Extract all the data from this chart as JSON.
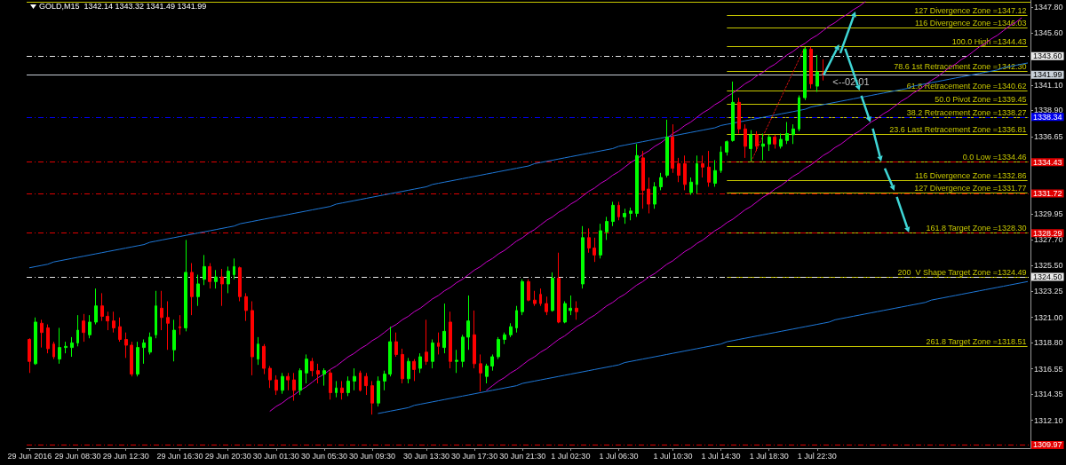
{
  "chart_data": {
    "type": "candlestick",
    "title": "GOLD,M15  1342.14 1343.32 1341.49 1341.99",
    "categories": [
      "29 Jun 2016",
      null,
      null,
      null,
      null,
      null,
      null,
      null,
      "29 Jun 08:30",
      null,
      null,
      null,
      null,
      null,
      null,
      null,
      "29 Jun 12:30",
      null,
      null,
      null,
      null,
      null,
      null,
      null,
      null,
      "29 Jun 16:30",
      null,
      null,
      null,
      null,
      null,
      null,
      null,
      "29 Jun 20:30",
      null,
      null,
      null,
      null,
      null,
      null,
      null,
      "30 Jun 01:30",
      null,
      null,
      null,
      null,
      null,
      null,
      null,
      "30 Jun 05:30",
      null,
      null,
      null,
      null,
      null,
      null,
      null,
      "30 Jun 09:30",
      null,
      null,
      null,
      null,
      null,
      null,
      null,
      null,
      "30 Jun 13:30",
      null,
      null,
      null,
      null,
      null,
      null,
      null,
      "30 Jun 17:30",
      null,
      null,
      null,
      null,
      null,
      null,
      null,
      "30 Jun 21:30",
      null,
      null,
      null,
      null,
      null,
      null,
      null,
      "1 Jul 02:30",
      null,
      null,
      null,
      null,
      null,
      null,
      null,
      "1 Jul 06:30",
      null,
      null,
      null,
      null,
      null,
      null,
      null,
      null,
      "1 Jul 10:30",
      null,
      null,
      null,
      null,
      null,
      null,
      null,
      "1 Jul 14:30",
      null,
      null,
      null,
      null,
      null,
      null,
      null,
      "1 Jul 18:30",
      null,
      null,
      null,
      null,
      null,
      null,
      null,
      "1 Jul 22:30",
      null,
      null,
      null,
      null,
      null,
      null,
      null,
      null,
      null,
      null,
      null,
      null,
      null,
      null,
      null,
      null,
      null,
      null,
      null,
      null,
      null,
      null,
      null,
      null,
      null,
      null,
      null,
      null,
      null,
      null,
      null,
      null,
      null,
      null,
      null
    ],
    "ohlc": [
      [
        1319.1,
        1319.2,
        1316.2,
        1317.2
      ],
      [
        1317.0,
        1321.0,
        1316.9,
        1320.6
      ],
      [
        1320.5,
        1320.8,
        1318.4,
        1319.7
      ],
      [
        1320.1,
        1320.4,
        1317.9,
        1318.3
      ],
      [
        1318.7,
        1318.9,
        1317.4,
        1317.6
      ],
      [
        1317.4,
        1320.1,
        1317.0,
        1318.4
      ],
      [
        1318.4,
        1318.9,
        1317.9,
        1318.5
      ],
      [
        1318.4,
        1319.3,
        1317.6,
        1318.8
      ],
      [
        1318.8,
        1321.2,
        1318.5,
        1319.9
      ],
      [
        1320.7,
        1321.3,
        1318.9,
        1319.7
      ],
      [
        1319.5,
        1321.2,
        1319.2,
        1320.6
      ],
      [
        1320.6,
        1323.5,
        1320.4,
        1322.0
      ],
      [
        1322.0,
        1323.1,
        1320.7,
        1321.1
      ],
      [
        1321.1,
        1321.5,
        1319.9,
        1320.7
      ],
      [
        1320.7,
        1321.5,
        1319.7,
        1320.1
      ],
      [
        1320.2,
        1321.0,
        1318.9,
        1319.1
      ],
      [
        1319.1,
        1319.7,
        1317.5,
        1318.6
      ],
      [
        1318.6,
        1318.9,
        1315.9,
        1316.1
      ],
      [
        1316.1,
        1318.9,
        1315.9,
        1318.4
      ],
      [
        1318.4,
        1319.1,
        1317.0,
        1318.8
      ],
      [
        1318.0,
        1319.7,
        1317.8,
        1319.3
      ],
      [
        1319.5,
        1323.3,
        1319.2,
        1322.0
      ],
      [
        1321.8,
        1323.3,
        1319.9,
        1321.0
      ],
      [
        1321.0,
        1322.4,
        1318.2,
        1320.5
      ],
      [
        1318.2,
        1320.8,
        1317.2,
        1319.9
      ],
      [
        1320.2,
        1321.2,
        1319.5,
        1320.1
      ],
      [
        1320.1,
        1327.7,
        1319.8,
        1324.9
      ],
      [
        1324.9,
        1325.7,
        1321.2,
        1322.8
      ],
      [
        1322.8,
        1324.7,
        1322.0,
        1323.9
      ],
      [
        1324.3,
        1326.4,
        1323.8,
        1325.4
      ],
      [
        1325.4,
        1325.7,
        1323.5,
        1324.1
      ],
      [
        1324.1,
        1325.1,
        1323.5,
        1324.5
      ],
      [
        1324.5,
        1325.2,
        1322.0,
        1323.9
      ],
      [
        1323.9,
        1325.4,
        1323.1,
        1325.0
      ],
      [
        1324.7,
        1326.1,
        1324.3,
        1325.4
      ],
      [
        1325.3,
        1325.4,
        1322.4,
        1322.8
      ],
      [
        1322.8,
        1323.1,
        1320.7,
        1321.6
      ],
      [
        1321.6,
        1322.4,
        1316.0,
        1317.6
      ],
      [
        1317.4,
        1319.3,
        1316.9,
        1318.7
      ],
      [
        1318.5,
        1318.7,
        1316.1,
        1316.6
      ],
      [
        1316.6,
        1316.8,
        1314.9,
        1315.6
      ],
      [
        1315.6,
        1316.0,
        1314.3,
        1314.7
      ],
      [
        1314.7,
        1316.2,
        1314.4,
        1315.9
      ],
      [
        1315.9,
        1316.2,
        1314.7,
        1315.6
      ],
      [
        1315.6,
        1316.2,
        1313.8,
        1314.7
      ],
      [
        1314.7,
        1316.6,
        1314.3,
        1316.4
      ],
      [
        1316.2,
        1317.8,
        1315.3,
        1317.4
      ],
      [
        1317.2,
        1317.5,
        1315.9,
        1316.4
      ],
      [
        1316.4,
        1317.0,
        1315.3,
        1316.1
      ],
      [
        1316.1,
        1316.6,
        1315.1,
        1316.4
      ],
      [
        1316.2,
        1316.5,
        1313.9,
        1314.5
      ],
      [
        1314.5,
        1315.5,
        1314.1,
        1314.9
      ],
      [
        1314.9,
        1315.5,
        1313.9,
        1314.5
      ],
      [
        1314.5,
        1315.9,
        1314.2,
        1315.5
      ],
      [
        1315.5,
        1316.6,
        1314.7,
        1315.9
      ],
      [
        1316.2,
        1316.4,
        1314.6,
        1314.7
      ],
      [
        1315.9,
        1316.2,
        1314.3,
        1315.1
      ],
      [
        1315.1,
        1315.5,
        1312.6,
        1313.6
      ],
      [
        1313.6,
        1315.9,
        1313.3,
        1315.5
      ],
      [
        1315.5,
        1316.4,
        1314.7,
        1316.1
      ],
      [
        1316.1,
        1320.2,
        1315.9,
        1318.9
      ],
      [
        1318.9,
        1319.7,
        1317.6,
        1317.8
      ],
      [
        1317.8,
        1318.3,
        1315.3,
        1315.7
      ],
      [
        1315.7,
        1317.5,
        1315.3,
        1317.2
      ],
      [
        1317.2,
        1317.4,
        1315.5,
        1316.5
      ],
      [
        1316.6,
        1317.9,
        1316.2,
        1317.6
      ],
      [
        1318.0,
        1320.8,
        1316.9,
        1317.2
      ],
      [
        1317.2,
        1319.1,
        1316.6,
        1318.8
      ],
      [
        1318.8,
        1319.7,
        1317.8,
        1318.5
      ],
      [
        1318.4,
        1322.2,
        1317.9,
        1319.8
      ],
      [
        1320.6,
        1321.5,
        1316.6,
        1317.2
      ],
      [
        1317.2,
        1318.2,
        1316.2,
        1317.3
      ],
      [
        1317.2,
        1319.5,
        1316.7,
        1319.3
      ],
      [
        1319.3,
        1322.9,
        1318.2,
        1320.7
      ],
      [
        1319.5,
        1321.6,
        1316.6,
        1317.0
      ],
      [
        1317.0,
        1317.8,
        1314.6,
        1316.2
      ],
      [
        1315.9,
        1317.0,
        1315.3,
        1316.8
      ],
      [
        1316.8,
        1317.8,
        1316.4,
        1317.6
      ],
      [
        1317.6,
        1319.3,
        1317.4,
        1319.1
      ],
      [
        1319.1,
        1319.7,
        1318.7,
        1319.5
      ],
      [
        1319.5,
        1320.5,
        1319.3,
        1320.2
      ],
      [
        1320.1,
        1322.0,
        1319.7,
        1321.6
      ],
      [
        1321.5,
        1324.3,
        1321.2,
        1324.1
      ],
      [
        1324.1,
        1324.3,
        1322.4,
        1322.5
      ],
      [
        1322.5,
        1323.3,
        1322.0,
        1322.2
      ],
      [
        1323.0,
        1323.5,
        1322.0,
        1322.2
      ],
      [
        1322.2,
        1322.8,
        1321.2,
        1321.5
      ],
      [
        1321.6,
        1324.9,
        1321.5,
        1324.4
      ],
      [
        1324.4,
        1326.6,
        1320.5,
        1320.6
      ],
      [
        1320.6,
        1322.4,
        1320.5,
        1322.2
      ],
      [
        1321.6,
        1322.9,
        1321.2,
        1321.8
      ],
      [
        1321.8,
        1322.4,
        1320.8,
        1321.5
      ],
      [
        1323.9,
        1328.9,
        1323.5,
        1327.9
      ],
      [
        1327.9,
        1328.7,
        1326.6,
        1327.0
      ],
      [
        1327.0,
        1327.9,
        1325.8,
        1326.4
      ],
      [
        1326.4,
        1329.1,
        1326.1,
        1328.5
      ],
      [
        1328.4,
        1329.7,
        1327.7,
        1329.3
      ],
      [
        1329.3,
        1331.0,
        1328.9,
        1330.7
      ],
      [
        1330.7,
        1331.0,
        1329.4,
        1329.7
      ],
      [
        1329.7,
        1330.4,
        1329.1,
        1330.0
      ],
      [
        1330.0,
        1330.5,
        1329.4,
        1330.2
      ],
      [
        1330.0,
        1336.0,
        1329.7,
        1335.0
      ],
      [
        1334.8,
        1335.4,
        1330.4,
        1332.0
      ],
      [
        1332.1,
        1333.1,
        1330.0,
        1330.8
      ],
      [
        1330.8,
        1332.7,
        1330.4,
        1332.3
      ],
      [
        1332.3,
        1333.5,
        1332.0,
        1333.1
      ],
      [
        1333.3,
        1338.1,
        1333.1,
        1336.6
      ],
      [
        1336.6,
        1337.7,
        1333.5,
        1333.9
      ],
      [
        1334.3,
        1334.8,
        1332.7,
        1333.3
      ],
      [
        1334.3,
        1335.0,
        1332.0,
        1332.5
      ],
      [
        1331.8,
        1333.1,
        1331.6,
        1332.7
      ],
      [
        1332.5,
        1335.0,
        1331.7,
        1334.3
      ],
      [
        1334.3,
        1335.0,
        1333.1,
        1334.0
      ],
      [
        1334.0,
        1335.4,
        1332.3,
        1332.7
      ],
      [
        1332.6,
        1334.6,
        1332.3,
        1333.7
      ],
      [
        1333.7,
        1335.8,
        1333.5,
        1335.3
      ],
      [
        1335.3,
        1336.3,
        1335.0,
        1336.2
      ],
      [
        1336.3,
        1341.4,
        1336.2,
        1339.6
      ],
      [
        1339.6,
        1340.0,
        1336.9,
        1337.3
      ],
      [
        1337.3,
        1337.7,
        1334.8,
        1335.8
      ],
      [
        1335.6,
        1337.2,
        1334.5,
        1336.8
      ],
      [
        1336.8,
        1337.1,
        1335.4,
        1335.8
      ],
      [
        1335.8,
        1336.9,
        1334.6,
        1336.0
      ],
      [
        1336.0,
        1336.8,
        1335.4,
        1336.6
      ],
      [
        1336.6,
        1336.8,
        1335.6,
        1336.0
      ],
      [
        1335.8,
        1336.9,
        1335.6,
        1336.4
      ],
      [
        1336.3,
        1337.9,
        1336.0,
        1336.9
      ],
      [
        1336.8,
        1337.7,
        1336.0,
        1337.3
      ],
      [
        1337.3,
        1340.2,
        1337.1,
        1340.0
      ],
      [
        1340.0,
        1344.4,
        1339.8,
        1344.2
      ],
      [
        1344.2,
        1344.4,
        1340.8,
        1341.2
      ],
      [
        1341.0,
        1343.7,
        1340.5,
        1342.2
      ],
      [
        1342.14,
        1343.32,
        1341.49,
        1341.99
      ],
      null,
      null,
      null,
      null,
      null,
      null,
      null,
      null,
      null,
      null,
      null,
      null,
      null,
      null,
      null,
      null,
      null,
      null,
      null,
      null,
      null,
      null,
      null,
      null,
      null,
      null,
      null,
      null,
      null,
      null,
      null,
      null,
      null,
      null
    ],
    "colors": [
      "#ff0000",
      "#00ff00",
      "#ff0000",
      "#ff0000",
      "#ff0000",
      "#00ff00",
      "#00ff00",
      "#00ff00",
      "#00ff00",
      "#ff0000",
      "#00ff00",
      "#00ff00",
      "#ff0000",
      "#ff0000",
      "#ff0000",
      "#ff0000",
      "#ff0000",
      "#ff0000",
      "#00ff00",
      "#00ff00",
      "#00ff00",
      "#00ff00",
      "#ff0000",
      "#ff0000",
      "#00ff00",
      "#ff0000",
      "#00ff00",
      "#ff0000",
      "#00ff00",
      "#00ff00",
      "#ff0000",
      "#00ff00",
      "#ff0000",
      "#00ff00",
      "#00ff00",
      "#ff0000",
      "#ff0000",
      "#ff0000",
      "#00ff00",
      "#ff0000",
      "#ff0000",
      "#ff0000",
      "#00ff00",
      "#ff0000",
      "#ff0000",
      "#00ff00",
      "#00ff00",
      "#ff0000",
      "#ff0000",
      "#00ff00",
      "#ff0000",
      "#00ff00",
      "#ff0000",
      "#00ff00",
      "#00ff00",
      "#ff0000",
      "#ff0000",
      "#ff0000",
      "#00ff00",
      "#00ff00",
      "#00ff00",
      "#ff0000",
      "#ff0000",
      "#00ff00",
      "#ff0000",
      "#00ff00",
      "#ff0000",
      "#00ff00",
      "#ff0000",
      "#00ff00",
      "#ff0000",
      "#00ff00",
      "#00ff00",
      "#00ff00",
      "#ff0000",
      "#ff0000",
      "#00ff00",
      "#00ff00",
      "#00ff00",
      "#00ff00",
      "#00ff00",
      "#00ff00",
      "#00ff00",
      "#ff0000",
      "#ff0000",
      "#ff0000",
      "#ff0000",
      "#00ff00",
      "#ff0000",
      "#00ff00",
      "#00ff00",
      "#ff0000",
      "#00ff00",
      "#ff0000",
      "#ff0000",
      "#00ff00",
      "#00ff00",
      "#00ff00",
      "#ff0000",
      "#00ff00",
      "#00ff00",
      "#00ff00",
      "#ff0000",
      "#ff0000",
      "#00ff00",
      "#00ff00",
      "#00ff00",
      "#ff0000",
      "#ff0000",
      "#ff0000",
      "#00ff00",
      "#00ff00",
      "#ff0000",
      "#ff0000",
      "#00ff00",
      "#00ff00",
      "#00ff00",
      "#00ff00",
      "#ff0000",
      "#ff0000",
      "#00ff00",
      "#ff0000",
      "#00ff00",
      "#00ff00",
      "#ff0000",
      "#00ff00",
      "#00ff00",
      "#00ff00",
      "#00ff00",
      "#00ff00",
      "#ff0000",
      "#00ff00",
      "#ff0000",
      null,
      null,
      null,
      null,
      null,
      null,
      null,
      null,
      null,
      null,
      null,
      null,
      null,
      null,
      null,
      null,
      null,
      null,
      null,
      null,
      null,
      null,
      null,
      null,
      null,
      null,
      null,
      null,
      null,
      null,
      null,
      null,
      null,
      null
    ],
    "series": [
      {
        "type": "line",
        "color": "#1e78d8",
        "line_style": "solid",
        "values": [
          1325.3,
          1325.4,
          1325.5,
          1325.6,
          1325.8,
          1325.9,
          1326.0,
          1326.1,
          1326.2,
          1326.3,
          1326.4,
          1326.5,
          1326.6,
          1326.7,
          1326.8,
          1326.9,
          1327.0,
          1327.1,
          1327.2,
          1327.3,
          1327.5,
          1327.6,
          1327.7,
          1327.8,
          1327.9,
          1328.0,
          1328.1,
          1328.2,
          1328.3,
          1328.4,
          1328.5,
          1328.6,
          1328.7,
          1328.8,
          1328.9,
          1329.1,
          1329.2,
          1329.3,
          1329.4,
          1329.5,
          1329.6,
          1329.7,
          1329.8,
          1329.9,
          1330.0,
          1330.1,
          1330.2,
          1330.3,
          1330.4,
          1330.5,
          1330.6,
          1330.8,
          1330.9,
          1331.0,
          1331.1,
          1331.2,
          1331.3,
          1331.4,
          1331.5,
          1331.6,
          1331.7,
          1331.8,
          1331.9,
          1332.0,
          1332.1,
          1332.2,
          1332.3,
          1332.5,
          1332.6,
          1332.7,
          1332.8,
          1332.9,
          1333.0,
          1333.1,
          1333.2,
          1333.3,
          1333.4,
          1333.5,
          1333.6,
          1333.7,
          1333.8,
          1333.9,
          1334.0,
          1334.1,
          1334.3,
          1334.4,
          1334.5,
          1334.6,
          1334.7,
          1334.8,
          1334.9,
          1335.0,
          1335.1,
          1335.2,
          1335.3,
          1335.4,
          1335.5,
          1335.6,
          1335.8,
          1335.9,
          1336.0,
          1336.1,
          1336.2,
          1336.3,
          1336.4,
          1336.5,
          1336.6,
          1336.7,
          1336.8,
          1336.9,
          1337.0,
          1337.1,
          1337.2,
          1337.3,
          1337.4,
          1337.6,
          1337.7,
          1337.8,
          1337.9,
          1338.0,
          1338.1,
          1338.2,
          1338.3,
          1338.4,
          1338.5,
          1338.6,
          1338.7,
          1338.8,
          1338.9,
          1339.0,
          1339.2,
          1339.3,
          1339.4,
          1339.5,
          1339.6,
          1339.7,
          1339.8,
          1339.9,
          1340.0,
          1340.1,
          1340.2,
          1340.3,
          1340.4,
          1340.5,
          1340.6,
          1340.7,
          1340.8,
          1341.0,
          1341.1,
          1341.2,
          1341.3,
          1341.4,
          1341.5,
          1341.6,
          1341.7,
          1341.8,
          1341.9,
          1342.0,
          1342.1,
          1342.2,
          1342.3,
          1342.4,
          1342.6,
          1342.7,
          1342.8,
          1342.9,
          1343.0
        ]
      },
      {
        "type": "line",
        "color": "#1e78d8",
        "line_style": "solid",
        "values": [
          null,
          null,
          null,
          null,
          null,
          null,
          null,
          null,
          null,
          null,
          null,
          null,
          null,
          null,
          null,
          null,
          null,
          null,
          null,
          null,
          null,
          null,
          null,
          null,
          null,
          null,
          null,
          null,
          null,
          null,
          null,
          null,
          null,
          null,
          null,
          null,
          null,
          null,
          null,
          null,
          null,
          null,
          null,
          null,
          null,
          null,
          null,
          null,
          null,
          null,
          null,
          null,
          null,
          null,
          null,
          null,
          null,
          null,
          1312.7,
          1312.8,
          1312.9,
          1313.0,
          1313.1,
          1313.2,
          1313.4,
          1313.5,
          1313.6,
          1313.7,
          1313.8,
          1313.9,
          1314.0,
          1314.1,
          1314.2,
          1314.3,
          1314.4,
          1314.5,
          1314.6,
          1314.7,
          1314.8,
          1314.9,
          1315.0,
          1315.1,
          1315.3,
          1315.4,
          1315.5,
          1315.6,
          1315.7,
          1315.8,
          1315.9,
          1316.0,
          1316.1,
          1316.2,
          1316.3,
          1316.4,
          1316.5,
          1316.6,
          1316.7,
          1316.8,
          1316.9,
          1317.1,
          1317.2,
          1317.3,
          1317.4,
          1317.5,
          1317.6,
          1317.7,
          1317.8,
          1317.9,
          1318.0,
          1318.1,
          1318.2,
          1318.3,
          1318.4,
          1318.5,
          1318.6,
          1318.7,
          1318.9,
          1319.0,
          1319.1,
          1319.2,
          1319.3,
          1319.4,
          1319.5,
          1319.6,
          1319.7,
          1319.8,
          1319.9,
          1320.0,
          1320.1,
          1320.2,
          1320.3,
          1320.4,
          1320.5,
          1320.6,
          1320.8,
          1320.9,
          1321.0,
          1321.1,
          1321.2,
          1321.3,
          1321.4,
          1321.5,
          1321.6,
          1321.7,
          1321.8,
          1321.9,
          1322.0,
          1322.1,
          1322.2,
          1322.3,
          1322.5,
          1322.6,
          1322.7,
          1322.8,
          1322.9,
          1323.0,
          1323.1,
          1323.2,
          1323.3,
          1323.4,
          1323.5,
          1323.6,
          1323.7,
          1323.8,
          1323.9,
          1324.0,
          1324.1
        ]
      },
      {
        "type": "line",
        "color": "#d000d0",
        "line_style": "solid",
        "values": [
          null,
          null,
          null,
          null,
          null,
          null,
          null,
          null,
          null,
          null,
          null,
          null,
          null,
          null,
          null,
          null,
          null,
          null,
          null,
          null,
          null,
          null,
          null,
          null,
          null,
          null,
          null,
          null,
          null,
          null,
          null,
          null,
          null,
          null,
          null,
          null,
          null,
          null,
          null,
          null,
          1312.9,
          1313.3,
          1313.6,
          1314.0,
          1314.3,
          1314.7,
          1315.0,
          1315.4,
          1315.8,
          1316.1,
          1316.5,
          1316.8,
          1317.2,
          1317.6,
          1317.9,
          1318.3,
          1318.6,
          1319.0,
          1319.3,
          1319.7,
          1320.1,
          1320.4,
          1320.8,
          1321.1,
          1321.5,
          1321.8,
          1322.2,
          1322.6,
          1322.9,
          1323.3,
          1323.6,
          1324.0,
          1324.3,
          1324.7,
          1325.1,
          1325.4,
          1325.8,
          1326.1,
          1326.5,
          1326.8,
          1327.2,
          1327.6,
          1327.9,
          1328.3,
          1328.6,
          1329.0,
          1329.4,
          1329.7,
          1330.1,
          1330.4,
          1330.8,
          1331.1,
          1331.5,
          1331.9,
          1332.2,
          1332.6,
          1332.9,
          1333.3,
          1333.6,
          1334.0,
          1334.4,
          1334.7,
          1335.1,
          1335.4,
          1335.8,
          1336.1,
          1336.5,
          1336.9,
          1337.2,
          1337.6,
          1337.9,
          1338.3,
          1338.7,
          1339.0,
          1339.4,
          1339.7,
          1340.1,
          1340.4,
          1340.8,
          1341.2,
          1341.5,
          1341.9,
          1342.2,
          1342.6,
          1342.9,
          1343.3,
          1343.7,
          1344.0,
          1344.4,
          1344.7,
          1345.1,
          1345.4,
          1345.8,
          1346.2,
          1346.5,
          1346.9,
          1347.2,
          1347.6,
          1347.9,
          1348.3,
          null,
          null,
          null,
          null,
          null,
          null,
          null,
          null,
          null,
          null,
          null,
          null,
          null,
          null,
          null,
          null,
          null,
          null,
          null,
          null,
          null,
          null,
          null,
          null,
          null,
          null,
          null
        ]
      },
      {
        "type": "line",
        "color": "#d000d0",
        "line_style": "solid",
        "values": [
          null,
          null,
          null,
          null,
          null,
          null,
          null,
          null,
          null,
          null,
          null,
          null,
          null,
          null,
          null,
          null,
          null,
          null,
          null,
          null,
          null,
          null,
          null,
          null,
          null,
          null,
          null,
          null,
          null,
          null,
          null,
          null,
          null,
          null,
          null,
          null,
          null,
          null,
          null,
          null,
          null,
          null,
          null,
          null,
          null,
          null,
          null,
          null,
          null,
          null,
          null,
          null,
          null,
          null,
          null,
          null,
          null,
          null,
          null,
          null,
          null,
          null,
          null,
          null,
          null,
          null,
          null,
          null,
          null,
          null,
          null,
          null,
          null,
          null,
          null,
          null,
          1314.7,
          1315.1,
          1315.5,
          1315.8,
          1316.2,
          1316.5,
          1316.9,
          1317.3,
          1317.6,
          1318.0,
          1318.3,
          1318.7,
          1319.1,
          1319.4,
          1319.8,
          1320.2,
          1320.5,
          1320.9,
          1321.2,
          1321.6,
          1322.0,
          1322.3,
          1322.7,
          1323.0,
          1323.4,
          1323.8,
          1324.1,
          1324.5,
          1324.8,
          1325.2,
          1325.6,
          1325.9,
          1326.3,
          1326.7,
          1327.0,
          1327.4,
          1327.7,
          1328.1,
          1328.5,
          1328.8,
          1329.2,
          1329.5,
          1329.9,
          1330.3,
          1330.6,
          1331.0,
          1331.4,
          1331.7,
          1332.1,
          1332.4,
          1332.8,
          1333.2,
          1333.5,
          1333.9,
          1334.2,
          1334.6,
          1335.0,
          1335.3,
          1335.7,
          1336.0,
          1336.4,
          1336.8,
          1337.1,
          1337.5,
          1337.9,
          1338.2,
          1338.6,
          1338.9,
          1339.3,
          1339.7,
          1340.0,
          1340.4,
          1340.7,
          1341.1,
          1341.5,
          1341.8,
          1342.2,
          1342.6,
          1342.9,
          1343.3,
          1343.6,
          1344.0,
          1344.4,
          1344.7,
          1345.1,
          1345.4,
          1345.8,
          1346.2,
          1346.5,
          1346.9,
          null
        ]
      },
      {
        "type": "line",
        "color": "#d01010",
        "line_style": "dotted",
        "values": [
          null,
          null,
          null,
          null,
          null,
          null,
          null,
          null,
          null,
          null,
          null,
          null,
          null,
          null,
          null,
          null,
          null,
          null,
          null,
          null,
          null,
          null,
          null,
          null,
          null,
          null,
          null,
          null,
          null,
          null,
          null,
          null,
          null,
          null,
          null,
          null,
          null,
          null,
          null,
          null,
          null,
          null,
          null,
          null,
          null,
          null,
          null,
          null,
          null,
          null,
          null,
          null,
          null,
          null,
          null,
          null,
          null,
          null,
          null,
          null,
          null,
          null,
          null,
          null,
          null,
          null,
          null,
          null,
          null,
          null,
          null,
          null,
          null,
          null,
          null,
          null,
          null,
          null,
          null,
          null,
          null,
          null,
          null,
          null,
          null,
          null,
          null,
          null,
          null,
          null,
          null,
          null,
          null,
          null,
          null,
          null,
          null,
          null,
          null,
          null,
          null,
          null,
          null,
          null,
          null,
          null,
          null,
          null,
          null,
          null,
          null,
          null,
          null,
          null,
          null,
          null,
          null,
          null,
          null,
          null,
          1334.46,
          1335.57,
          1336.68,
          1337.78,
          1338.89,
          1340.0,
          1341.11,
          1342.21,
          1343.32,
          1344.43,
          null,
          null,
          null,
          null,
          null,
          null,
          null,
          null,
          null,
          null,
          null,
          null,
          null,
          null,
          null,
          null,
          null,
          null,
          null,
          null,
          null,
          null,
          null,
          null,
          null,
          null,
          null,
          null,
          null,
          null,
          null,
          null,
          null,
          null,
          null,
          null,
          null
        ]
      }
    ],
    "marker": "none",
    "ylim": [
      1309.7,
      1348.45
    ],
    "yticks": [
      {
        "value": 1347.8,
        "label": "1347.80"
      },
      {
        "value": 1345.6,
        "label": "1345.60"
      },
      {
        "value": 1341.1,
        "label": "1341.10"
      },
      {
        "value": 1338.9,
        "label": "1338.90"
      },
      {
        "value": 1336.65,
        "label": "1336.65"
      },
      {
        "value": 1329.95,
        "label": "1329.95"
      },
      {
        "value": 1327.7,
        "label": "1327.70"
      },
      {
        "value": 1325.5,
        "label": "1325.50"
      },
      {
        "value": 1323.25,
        "label": "1323.25"
      },
      {
        "value": 1321,
        "label": "1321.00"
      },
      {
        "value": 1318.8,
        "label": "1318.80"
      },
      {
        "value": 1316.55,
        "label": "1316.55"
      },
      {
        "value": 1314.35,
        "label": "1314.35"
      },
      {
        "value": 1312.1,
        "label": "1312.10"
      }
    ],
    "ref_lines": [
      {
        "axis": "y",
        "value": 1348.25,
        "color": "#c8c800"
      },
      {
        "axis": "y",
        "value": 1347.12,
        "label": "127 Divergence Zone =1347.12",
        "color": "#c8c800"
      },
      {
        "axis": "y",
        "value": 1346.03,
        "label": "116 Divergence Zone =1346.03",
        "color": "#c8c800"
      },
      {
        "axis": "y",
        "value": 1344.43,
        "label": "100.0 High =1344.43",
        "color": "#c8c800"
      },
      {
        "axis": "y",
        "value": 1342.3,
        "label": "78.6 1st Retracement Zone =1342.30",
        "color": "#c8c800"
      },
      {
        "axis": "y",
        "value": 1340.62,
        "label": "61.8 Retracement Zone =1340.62",
        "color": "#c8c800"
      },
      {
        "axis": "y",
        "value": 1339.45,
        "label": "50.0 Pivot Zone =1339.45",
        "color": "#c8c800"
      },
      {
        "axis": "y",
        "value": 1338.27,
        "label": "38.2 Retracement Zone =1338.27",
        "color": "#c8c800"
      },
      {
        "axis": "y",
        "value": 1336.81,
        "label": "23.6 Last Retracement Zone =1336.81",
        "color": "#c8c800"
      },
      {
        "axis": "y",
        "value": 1334.46,
        "label": "0.0 Low =1334.46",
        "color": "#c8c800"
      },
      {
        "axis": "y",
        "value": 1332.86,
        "label": "116 Divergence Zone =1332.86",
        "color": "#c8c800"
      },
      {
        "axis": "y",
        "value": 1331.77,
        "label": "127 Divergence Zone =1331.77",
        "color": "#c8c800"
      },
      {
        "axis": "y",
        "value": 1328.3,
        "label": "161.8 Target Zone =1328.30",
        "color": "#c8c800"
      },
      {
        "axis": "y",
        "value": 1324.49,
        "label": "200  V Shape Target Zone =1324.49",
        "color": "#c8c800"
      },
      {
        "axis": "y",
        "value": 1318.51,
        "label": "261.8 Target Zone =1318.51",
        "color": "#c8c800"
      },
      {
        "axis": "y",
        "value": 1343.6,
        "label": "1343.60",
        "color": "#e8e8e8",
        "line_style": "dashed"
      },
      {
        "axis": "y",
        "value": 1341.99,
        "label": "1341.99",
        "color": "#c8d0d8",
        "line_style": "solid"
      },
      {
        "axis": "y",
        "value": 1338.34,
        "label": "1338.34",
        "color": "#0000f0",
        "line_style": "dashed"
      },
      {
        "axis": "y",
        "value": 1334.43,
        "label": "1334.43",
        "color": "#e00000",
        "line_style": "dashed"
      },
      {
        "axis": "y",
        "value": 1331.72,
        "label": "1331.72",
        "color": "#e00000",
        "line_style": "dashed"
      },
      {
        "axis": "y",
        "value": 1328.29,
        "label": "1328.29",
        "color": "#e00000",
        "line_style": "dashed"
      },
      {
        "axis": "y",
        "value": 1324.5,
        "label": "1324.50",
        "color": "#e8e8e8",
        "line_style": "dashed"
      },
      {
        "axis": "y",
        "value": 1309.97,
        "label": "1309.97",
        "color": "#e00000",
        "line_style": "dashed"
      }
    ],
    "annotations": [
      {
        "text": "<--02:01",
        "y": 1341.99
      }
    ]
  }
}
